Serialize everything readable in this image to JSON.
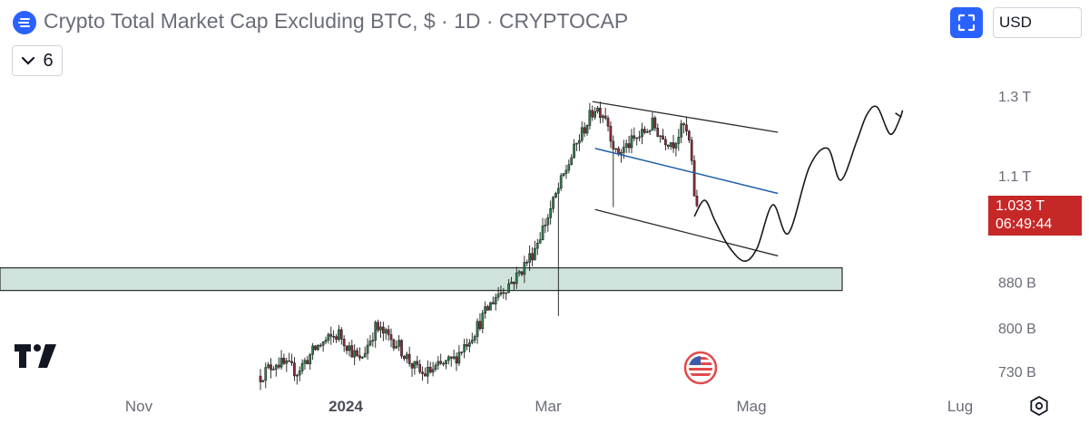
{
  "header": {
    "title": "Crypto Total Market Cap Excluding BTC, $ · 1D · CRYPTOCAP",
    "indicator_count": "6",
    "currency": "USD"
  },
  "price_label": {
    "price": "1.033 T",
    "countdown": "06:49:44"
  },
  "colors": {
    "accent": "#2962ff",
    "price_tag": "#c62828",
    "zone_fill": "#cfe3dc",
    "midline": "#1f5fa8"
  },
  "chart_data": {
    "type": "candlestick",
    "x_ticks": [
      "Nov",
      "2024",
      "Mar",
      "Mag",
      "Lug"
    ],
    "y_ticks": [
      "1.3 T",
      "1.1 T",
      "880 B",
      "800 B",
      "730 B"
    ],
    "y_tick_values": [
      1300,
      1100,
      880,
      800,
      730
    ],
    "y_unit": "B USD",
    "last_price": 1033,
    "anchors": [
      {
        "day": 0,
        "price": 723
      },
      {
        "day": 6,
        "price": 745
      },
      {
        "day": 14,
        "price": 730
      },
      {
        "day": 22,
        "price": 770
      },
      {
        "day": 30,
        "price": 790
      },
      {
        "day": 38,
        "price": 745
      },
      {
        "day": 44,
        "price": 800
      },
      {
        "day": 52,
        "price": 775
      },
      {
        "day": 58,
        "price": 740
      },
      {
        "day": 62,
        "price": 725
      },
      {
        "day": 70,
        "price": 740
      },
      {
        "day": 74,
        "price": 748
      },
      {
        "day": 82,
        "price": 795
      },
      {
        "day": 90,
        "price": 855
      },
      {
        "day": 98,
        "price": 890
      },
      {
        "day": 104,
        "price": 935
      },
      {
        "day": 110,
        "price": 1010
      },
      {
        "day": 116,
        "price": 1100
      },
      {
        "day": 122,
        "price": 1190
      },
      {
        "day": 128,
        "price": 1270
      },
      {
        "day": 132,
        "price": 1250
      },
      {
        "day": 136,
        "price": 1150
      },
      {
        "day": 142,
        "price": 1180
      },
      {
        "day": 146,
        "price": 1200
      },
      {
        "day": 150,
        "price": 1225
      },
      {
        "day": 154,
        "price": 1190
      },
      {
        "day": 158,
        "price": 1180
      },
      {
        "day": 162,
        "price": 1220
      },
      {
        "day": 164,
        "price": 1180
      },
      {
        "day": 166,
        "price": 1060
      },
      {
        "day": 167,
        "price": 1033
      }
    ],
    "drawings": {
      "support_zone": {
        "low": 865,
        "high": 907
      },
      "channel_upper": [
        {
          "day": 127,
          "price": 1285
        },
        {
          "day": 198,
          "price": 1205
        }
      ],
      "channel_mid": [
        {
          "day": 128,
          "price": 1165
        },
        {
          "day": 198,
          "price": 1060
        }
      ],
      "channel_lower": [
        {
          "day": 128,
          "price": 1025
        },
        {
          "day": 198,
          "price": 930
        }
      ],
      "projection": [
        {
          "day": 166,
          "price": 1010
        },
        {
          "day": 170,
          "price": 1045
        },
        {
          "day": 174,
          "price": 1000
        },
        {
          "day": 179,
          "price": 950
        },
        {
          "day": 185,
          "price": 920
        },
        {
          "day": 190,
          "price": 945
        },
        {
          "day": 196,
          "price": 1035
        },
        {
          "day": 202,
          "price": 975
        },
        {
          "day": 210,
          "price": 1120
        },
        {
          "day": 217,
          "price": 1165
        },
        {
          "day": 222,
          "price": 1090
        },
        {
          "day": 228,
          "price": 1180
        },
        {
          "day": 232,
          "price": 1250
        },
        {
          "day": 236,
          "price": 1270
        },
        {
          "day": 241,
          "price": 1200
        },
        {
          "day": 245,
          "price": 1245
        }
      ]
    }
  }
}
